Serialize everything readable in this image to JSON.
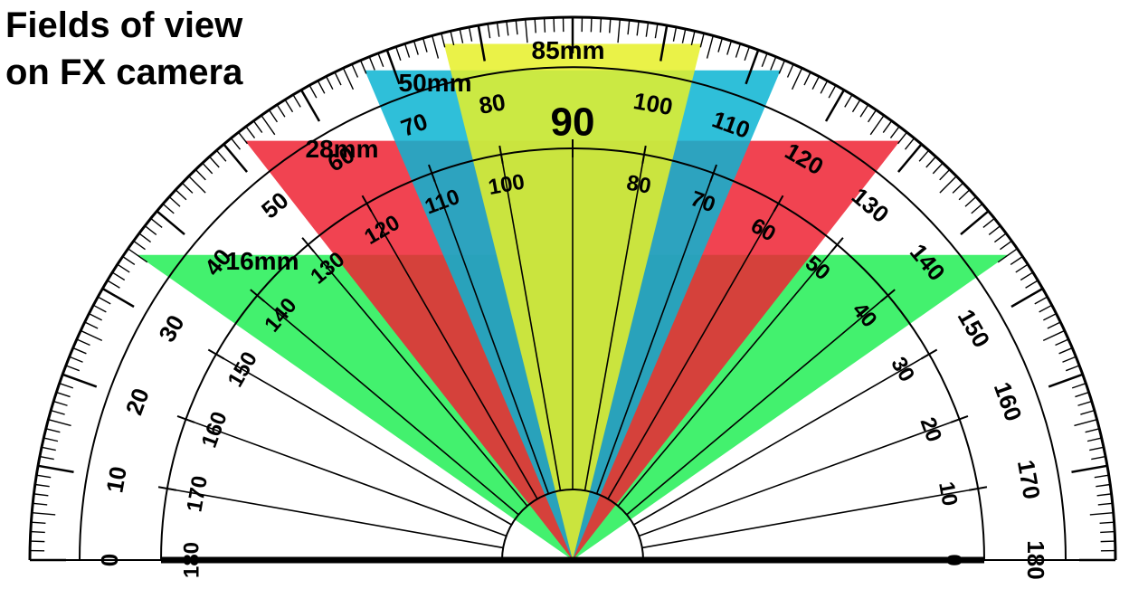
{
  "title": {
    "line1": "Fields of view",
    "line2": "on FX camera"
  },
  "fields_of_view": [
    {
      "label": "16mm",
      "half_angle_deg": 55,
      "color": "#22ee55"
    },
    {
      "label": "28mm",
      "half_angle_deg": 38,
      "color": "#ee2233"
    },
    {
      "label": "50mm",
      "half_angle_deg": 23,
      "color": "#0ab4d2"
    },
    {
      "label": "85mm",
      "half_angle_deg": 14,
      "color": "#e6f028"
    }
  ],
  "protractor": {
    "outer_labels": [
      "0",
      "10",
      "20",
      "30",
      "40",
      "50",
      "60",
      "70",
      "80",
      "90",
      "100",
      "110",
      "120",
      "130",
      "140",
      "150",
      "160",
      "170",
      "180"
    ],
    "inner_labels": [
      "180",
      "170",
      "160",
      "150",
      "140",
      "130",
      "120",
      "110",
      "100",
      "90",
      "80",
      "70",
      "60",
      "50",
      "40",
      "30",
      "20",
      "10",
      "0"
    ],
    "center_label": "90"
  },
  "colors": {
    "ink": "#000000",
    "background": "#ffffff"
  }
}
